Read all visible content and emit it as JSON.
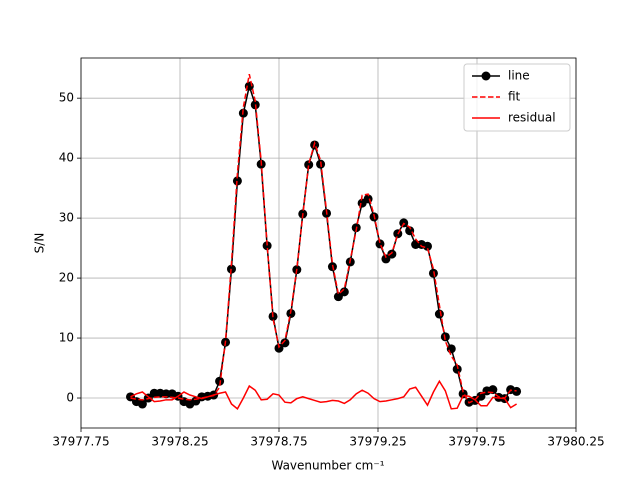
{
  "chart_data": {
    "type": "line",
    "xlabel": "Wavenumber cm⁻¹",
    "ylabel": "S/N",
    "xlim": [
      37977.75,
      37980.25
    ],
    "ylim": [
      -5,
      56.7
    ],
    "xticks": [
      37977.75,
      37978.25,
      37978.75,
      37979.25,
      37979.75,
      37980.25
    ],
    "yticks": [
      0,
      10,
      20,
      30,
      40,
      50
    ],
    "grid": true,
    "legend": "upper right",
    "x": [
      37978.0,
      37978.03,
      37978.06,
      37978.09,
      37978.12,
      37978.15,
      37978.18,
      37978.21,
      37978.24,
      37978.27,
      37978.3,
      37978.33,
      37978.36,
      37978.39,
      37978.42,
      37978.45,
      37978.48,
      37978.51,
      37978.54,
      37978.57,
      37978.6,
      37978.63,
      37978.66,
      37978.69,
      37978.72,
      37978.75,
      37978.78,
      37978.81,
      37978.84,
      37978.87,
      37978.9,
      37978.93,
      37978.96,
      37978.99,
      37979.02,
      37979.05,
      37979.08,
      37979.11,
      37979.14,
      37979.17,
      37979.2,
      37979.23,
      37979.26,
      37979.29,
      37979.32,
      37979.35,
      37979.38,
      37979.41,
      37979.44,
      37979.47,
      37979.5,
      37979.53,
      37979.56,
      37979.59,
      37979.62,
      37979.65,
      37979.68,
      37979.71,
      37979.74,
      37979.77,
      37979.8,
      37979.83,
      37979.86,
      37979.89,
      37979.92,
      37979.95
    ],
    "series": [
      {
        "name": "line",
        "color": "#000000",
        "linestyle": "solid",
        "marker": "circle",
        "values": [
          0.2,
          -0.6,
          -1,
          0,
          0.8,
          0.8,
          0.7,
          0.7,
          0.3,
          -0.6,
          -1,
          -0.5,
          0.2,
          0.3,
          0.5,
          2.8,
          9.3,
          21.5,
          36.2,
          47.5,
          52,
          48.9,
          39,
          25.4,
          13.6,
          8.3,
          9.2,
          14.1,
          21.4,
          30.7,
          38.9,
          42.2,
          39,
          30.8,
          21.9,
          16.9,
          17.7,
          22.7,
          28.4,
          32.5,
          33.2,
          30.2,
          25.7,
          23.2,
          24,
          27.4,
          29.2,
          27.9,
          25.6,
          25.6,
          25.3,
          20.8,
          14,
          10.2,
          8.2,
          4.8,
          0.7,
          -0.7,
          -0.4,
          0.3,
          1.2,
          1.4,
          0.1,
          -0.1,
          1.4,
          1.1
        ]
      },
      {
        "name": "fit",
        "color": "#ff0000",
        "linestyle": "dashed",
        "marker": "none",
        "values": [
          0,
          -0.2,
          -0.3,
          -0.1,
          0.1,
          0.2,
          0.2,
          0.1,
          0,
          -0.2,
          -0.3,
          -0.2,
          0,
          0.2,
          0.4,
          1.8,
          9.5,
          22.5,
          37.5,
          48.5,
          54,
          49.5,
          39.5,
          25.6,
          13.2,
          8.5,
          9.6,
          14.5,
          21.5,
          30.5,
          39,
          42.5,
          39.6,
          31.2,
          22.3,
          17.3,
          18.2,
          23,
          28,
          33.8,
          34,
          30.5,
          25.8,
          23.5,
          24.2,
          27.3,
          29.1,
          28.5,
          26.5,
          25.3,
          25,
          21.5,
          15.5,
          9.5,
          7,
          5.5,
          1,
          -0.8,
          -0.3,
          0.8,
          1,
          0.9,
          0.2,
          0,
          1.3,
          1.2
        ]
      },
      {
        "name": "residual",
        "color": "#ff0000",
        "linestyle": "solid",
        "marker": "none",
        "values": [
          0.2,
          0.7,
          1,
          0.2,
          -0.6,
          -0.5,
          -0.3,
          -0.3,
          0.3,
          1,
          0.5,
          0.2,
          -0.1,
          0.2,
          0.5,
          0.8,
          1,
          -1,
          -1.8,
          0,
          2,
          1.3,
          -0.3,
          -0.2,
          0.7,
          0.5,
          -0.7,
          -0.8,
          -0.1,
          0.2,
          -0.1,
          -0.4,
          -0.7,
          -0.6,
          -0.4,
          -0.5,
          -0.9,
          -0.3,
          0.7,
          1.3,
          0.8,
          -0.1,
          -0.6,
          -0.5,
          -0.3,
          -0.1,
          0.2,
          1.5,
          1.8,
          0.3,
          -1.2,
          1,
          2.8,
          1.2,
          -1.8,
          -1.7,
          0.4,
          0.3,
          -0.3,
          -1.3,
          -1.3,
          0.1,
          0,
          -0.1,
          -1.6,
          -1
        ]
      }
    ]
  }
}
